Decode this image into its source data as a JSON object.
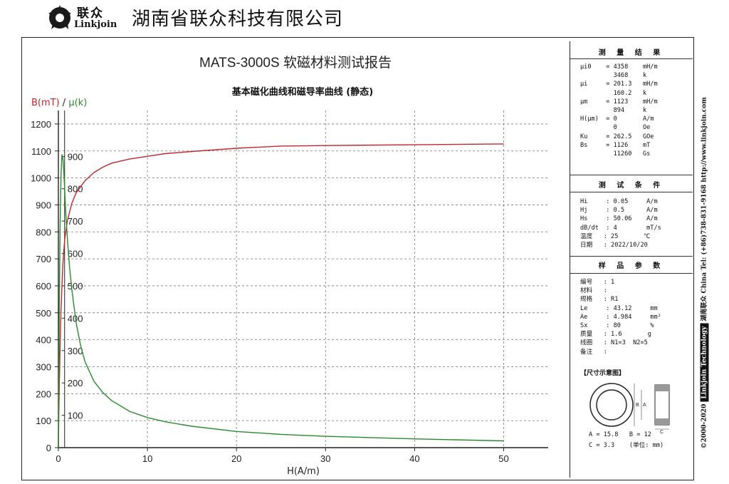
{
  "header": {
    "logo_cn": "联众",
    "logo_en": "Linkjoin",
    "company": "湖南省联众科技有限公司"
  },
  "chart": {
    "title": "MATS-3000S  软磁材料测试报告",
    "subtitle": "基本磁化曲线和磁导率曲线 (静态)"
  },
  "chart_data": {
    "type": "line",
    "title": "MATS-3000S  软磁材料测试报告",
    "subtitle": "基本磁化曲线和磁导率曲线 (静态)",
    "xlabel": "H(A/m)",
    "ylabel_left": "B(mT)",
    "ylabel_sep": " / ",
    "ylabel_right": "μ(k)",
    "xlim": [
      0,
      55
    ],
    "ylim_left": [
      0,
      1250
    ],
    "ylim_right": [
      0,
      1041.7
    ],
    "x_ticks": [
      0,
      10,
      20,
      30,
      40,
      50
    ],
    "y_ticks_left": [
      0,
      100,
      200,
      300,
      400,
      500,
      600,
      700,
      800,
      900,
      1000,
      1100,
      1200
    ],
    "y_ticks_right": [
      100,
      200,
      300,
      400,
      500,
      600,
      700,
      800,
      900
    ],
    "grid": true,
    "series": [
      {
        "axis": "left",
        "color": "#c0282d",
        "x": [
          0,
          0.05,
          0.1,
          0.2,
          0.3,
          0.5,
          0.7,
          1,
          1.5,
          2,
          3,
          4,
          5,
          6,
          8,
          10,
          12,
          15,
          20,
          25,
          30,
          40,
          50
        ],
        "y": [
          0,
          120,
          230,
          390,
          520,
          680,
          770,
          840,
          905,
          945,
          990,
          1020,
          1040,
          1055,
          1070,
          1080,
          1090,
          1098,
          1110,
          1118,
          1120,
          1123,
          1126
        ]
      },
      {
        "axis": "right",
        "color": "#2a8a2e",
        "x": [
          0,
          0.1,
          0.2,
          0.3,
          0.4,
          0.5,
          0.6,
          0.7,
          0.85,
          1,
          1.25,
          1.5,
          2,
          2.5,
          3,
          4,
          5,
          6,
          8,
          10,
          12,
          15,
          20,
          25,
          30,
          40,
          50
        ],
        "y": [
          0,
          440,
          700,
          850,
          905,
          894,
          860,
          800,
          715,
          650,
          560,
          490,
          385,
          315,
          265,
          205,
          170,
          145,
          112,
          93,
          80,
          66,
          50,
          41,
          35,
          27,
          21
        ]
      }
    ]
  },
  "results": {
    "title": "测 量 结 果",
    "rows": [
      "μi0    = 4358    mH/m",
      "         3468    k",
      "μi     = 201.3   mH/m",
      "         160.2   k",
      "μm     = 1123    mH/m",
      "         894     k",
      "H(μm)  = 0       A/m",
      "         0       Oe",
      "Ku     = 262.5   GOe",
      "Bs     = 1126    mT",
      "         11260   Gs"
    ]
  },
  "conditions": {
    "title": "测 试 条 件",
    "rows": [
      "Hi     : 0.05     A/m",
      "Hj     : 0.5      A/m",
      "Hs     : 50.06    A/m",
      "dB/dt  : 4        mT/s",
      "温度   : 25       ℃",
      "日期   : 2022/10/20"
    ]
  },
  "sample": {
    "title": "样 品 参 数",
    "rows": [
      "编号   : 1",
      "材料   :",
      "规格   : R1",
      "Le     : 43.12     mm",
      "Ae     : 4.984     mm²",
      "Sx     : 80        %",
      "质量   : 1.6       g",
      "线圈   : N1=3  N2=5",
      "备注   :"
    ],
    "dim_title": "【尺寸示意图】",
    "dim_line1": "A = 15.8   B = 12",
    "dim_line2": "C = 3.3    (单位: mm)",
    "dim_label_b": "B",
    "dim_label_a": "A",
    "dim_label_c": "C"
  },
  "side": {
    "copyright": "©2000-2020",
    "box": "Linkjoin Technology",
    "china": "湖南联众 China",
    "tel": "Tel: (+86)738-831-9168",
    "url": "http://www.linkjoin.com"
  }
}
